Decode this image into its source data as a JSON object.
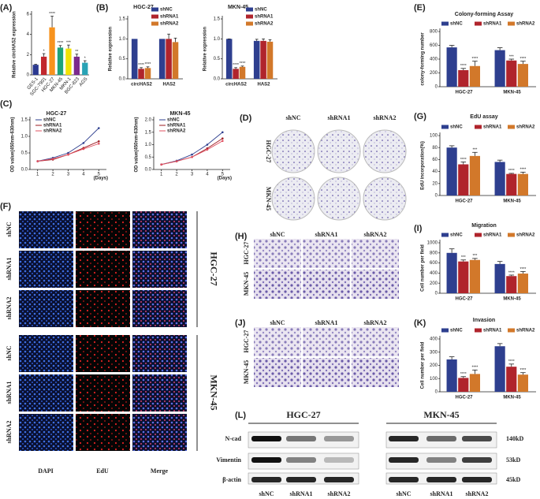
{
  "panel_labels": [
    "(A)",
    "(B)",
    "(E)",
    "(C)",
    "(D)",
    "(G)",
    "(F)",
    "(H)",
    "(I)",
    "(J)",
    "(K)",
    "(L)"
  ],
  "chart_data": [
    {
      "type": "bar",
      "ylabel": "Relative circHAS2 expression",
      "categories": [
        "GES-1",
        "SGC-7901",
        "HGC-27",
        "MKN-45",
        "MKN-1",
        "BGC-823",
        "AGS"
      ],
      "values": [
        1,
        1.8,
        4.7,
        2.7,
        2.6,
        1.8,
        1.2
      ],
      "errors": [
        0.05,
        0.3,
        1.1,
        0.2,
        0.35,
        0.25,
        0.2
      ],
      "colors": [
        "#2b3990",
        "#c1272d",
        "#f7931e",
        "#1fa37a",
        "#f2e205",
        "#7b2a8c",
        "#29a3b5"
      ],
      "annotations": [
        null,
        "*",
        "****",
        "****",
        "***",
        "**",
        "*"
      ],
      "ylim": [
        0,
        6
      ],
      "yticks": [
        0,
        2,
        4,
        6
      ]
    },
    {
      "type": "bar",
      "title": "HGC-27",
      "ylabel": "Relative expression",
      "categories": [
        "circHAS2",
        "HAS2"
      ],
      "series": [
        {
          "name": "shNC",
          "color": "#2e3f8f",
          "values": [
            1,
            1
          ]
        },
        {
          "name": "shRNA1",
          "color": "#b0242c",
          "values": [
            0.25,
            1.0
          ],
          "errors": [
            0.03,
            0.12
          ],
          "annotations": [
            "****",
            null
          ]
        },
        {
          "name": "shRNA2",
          "color": "#d2782a",
          "values": [
            0.27,
            0.92
          ],
          "errors": [
            0.03,
            0.1
          ],
          "annotations": [
            "****",
            null
          ]
        }
      ],
      "ylim": [
        0,
        1.5
      ],
      "yticks": [
        {
          "value": 0,
          "label": "0.0"
        },
        {
          "value": 0.5,
          "label": "0.5"
        },
        {
          "value": 1,
          "label": "1.0"
        },
        {
          "value": 1.5,
          "label": "1.5"
        }
      ]
    },
    {
      "type": "bar",
      "title": "MKN-45",
      "ylabel": "Relative expression",
      "categories": [
        "circHAS2",
        "HAS2"
      ],
      "series": [
        {
          "name": "shNC",
          "color": "#2e3f8f",
          "values": [
            1,
            0.95
          ],
          "errors": [
            0,
            0.04
          ]
        },
        {
          "name": "shRNA1",
          "color": "#b0242c",
          "values": [
            0.25,
            0.95
          ],
          "errors": [
            0.03,
            0.05
          ],
          "annotations": [
            "****",
            null
          ]
        },
        {
          "name": "shRNA2",
          "color": "#d2782a",
          "values": [
            0.3,
            0.93
          ],
          "errors": [
            0.02,
            0.05
          ],
          "annotations": [
            "****",
            null
          ]
        }
      ],
      "ylim": [
        0,
        1.5
      ],
      "yticks": [
        {
          "value": 0,
          "label": "0.0"
        },
        {
          "value": 0.5,
          "label": "0.5"
        },
        {
          "value": 1,
          "label": "1.0"
        },
        {
          "value": 1.5,
          "label": "1.5"
        }
      ]
    },
    {
      "type": "bar",
      "title": "Colony-forming Assay",
      "ylabel": "colony-forming number",
      "categories": [
        "HGC-27",
        "MKN-45"
      ],
      "series": [
        {
          "name": "shNC",
          "color": "#2e3f8f",
          "values": [
            570,
            530
          ],
          "errors": [
            30,
            35
          ]
        },
        {
          "name": "shRNA1",
          "color": "#b0242c",
          "values": [
            240,
            380
          ],
          "errors": [
            25,
            20
          ],
          "annotations": [
            "****",
            "***"
          ]
        },
        {
          "name": "shRNA2",
          "color": "#d2782a",
          "values": [
            300,
            330
          ],
          "errors": [
            70,
            40
          ],
          "annotations": [
            "****",
            "****"
          ]
        }
      ],
      "ylim": [
        0,
        800
      ],
      "yticks": [
        0,
        200,
        400,
        600,
        800
      ]
    },
    {
      "type": "line",
      "title": "HGC-27",
      "ylabel": "OD value(450nm-630nm)",
      "xlabel": "(Days)",
      "x": [
        1,
        2,
        3,
        4,
        5
      ],
      "xlim": [
        0.5,
        5.5
      ],
      "xticks": [
        1,
        2,
        3,
        4,
        5
      ],
      "series": [
        {
          "name": "shNC",
          "color": "#2e3f8f",
          "values": [
            0.25,
            0.35,
            0.5,
            0.8,
            1.25
          ]
        },
        {
          "name": "shRNA1",
          "color": "#9e1b22",
          "values": [
            0.25,
            0.3,
            0.45,
            0.65,
            0.85
          ]
        },
        {
          "name": "shRNA2",
          "color": "#e05060",
          "values": [
            0.25,
            0.32,
            0.45,
            0.62,
            0.78
          ]
        }
      ],
      "ylim": [
        0,
        1.5
      ],
      "yticks": [
        {
          "value": 0,
          "label": "0.0"
        },
        {
          "value": 0.5,
          "label": "0.5"
        },
        {
          "value": 1,
          "label": "1.0"
        },
        {
          "value": 1.5,
          "label": "1.5"
        }
      ]
    },
    {
      "type": "line",
      "title": "MKN-45",
      "ylabel": "OD value(450nm-630nm)",
      "xlabel": "(Days)",
      "x": [
        1,
        2,
        3,
        4,
        5
      ],
      "xlim": [
        0.5,
        5.5
      ],
      "xticks": [
        1,
        2,
        3,
        4,
        5
      ],
      "series": [
        {
          "name": "shNC",
          "color": "#2e3f8f",
          "values": [
            0.2,
            0.35,
            0.6,
            1.0,
            1.5
          ]
        },
        {
          "name": "shRNA1",
          "color": "#9e1b22",
          "values": [
            0.2,
            0.33,
            0.5,
            0.85,
            1.25
          ]
        },
        {
          "name": "shRNA2",
          "color": "#e05060",
          "values": [
            0.2,
            0.33,
            0.5,
            0.8,
            1.15
          ]
        }
      ],
      "ylim": [
        0,
        2
      ],
      "yticks": [
        {
          "value": 0,
          "label": "0.0"
        },
        {
          "value": 0.5,
          "label": "0.5"
        },
        {
          "value": 1,
          "label": "1.0"
        },
        {
          "value": 1.5,
          "label": "1.5"
        },
        {
          "value": 2,
          "label": "2.0"
        }
      ]
    },
    {
      "type": "bar",
      "title": "EdU assay",
      "ylabel": "EdU incorporation(%)",
      "categories": [
        "HGC-27",
        "MKN-45"
      ],
      "series": [
        {
          "name": "shNC",
          "color": "#2e3f8f",
          "values": [
            80,
            56
          ],
          "errors": [
            3,
            3
          ]
        },
        {
          "name": "shRNA1",
          "color": "#b0242c",
          "values": [
            52,
            36
          ],
          "errors": [
            4,
            1
          ],
          "annotations": [
            "****",
            "****"
          ]
        },
        {
          "name": "shRNA2",
          "color": "#d2782a",
          "values": [
            66,
            36
          ],
          "errors": [
            6,
            3
          ],
          "annotations": [
            "***",
            "****"
          ]
        }
      ],
      "ylim": [
        0,
        100
      ],
      "yticks": [
        0,
        20,
        40,
        60,
        80,
        100
      ]
    },
    {
      "type": "bar",
      "title": "Migration",
      "ylabel": "Cell number per field",
      "categories": [
        "HGC-27",
        "MKN-45"
      ],
      "series": [
        {
          "name": "shNC",
          "color": "#2e3f8f",
          "values": [
            800,
            580
          ],
          "errors": [
            80,
            50
          ]
        },
        {
          "name": "shRNA1",
          "color": "#b0242c",
          "values": [
            630,
            340
          ],
          "errors": [
            30,
            20
          ],
          "annotations": [
            "***",
            "****"
          ]
        },
        {
          "name": "shRNA2",
          "color": "#d2782a",
          "values": [
            660,
            390
          ],
          "errors": [
            30,
            40
          ],
          "annotations": [
            "***",
            "****"
          ]
        }
      ],
      "ylim": [
        0,
        1000
      ],
      "yticks": [
        0,
        200,
        400,
        600,
        800,
        1000
      ]
    },
    {
      "type": "bar",
      "title": "Invasion",
      "ylabel": "Cell number per field",
      "categories": [
        "HGC-27",
        "MKN-45"
      ],
      "series": [
        {
          "name": "shNC",
          "color": "#2e3f8f",
          "values": [
            245,
            345
          ],
          "errors": [
            20,
            20
          ]
        },
        {
          "name": "shRNA1",
          "color": "#b0242c",
          "values": [
            105,
            190
          ],
          "errors": [
            10,
            20
          ],
          "annotations": [
            "****",
            "****"
          ]
        },
        {
          "name": "shRNA2",
          "color": "#d2782a",
          "values": [
            135,
            130
          ],
          "errors": [
            30,
            15
          ],
          "annotations": [
            "****",
            "****"
          ]
        }
      ],
      "ylim": [
        0,
        400
      ],
      "yticks": [
        0,
        100,
        200,
        300,
        400
      ]
    }
  ],
  "images": {
    "D": {
      "rows": [
        "HGC-27",
        "MKN-45"
      ],
      "cols": [
        "shNC",
        "shRNA1",
        "shRNA2"
      ]
    },
    "F": {
      "groups": [
        "HGC-27",
        "MKN-45"
      ],
      "rows": [
        "shNC",
        "shRNA1",
        "shRNA2"
      ],
      "cols": [
        "DAPI",
        "EdU",
        "Merge"
      ]
    },
    "H": {
      "rows": [
        "HGC-27",
        "MKN-45"
      ],
      "cols": [
        "shNC",
        "shRNA1",
        "shRNA2"
      ]
    },
    "J": {
      "rows": [
        "HGC-27",
        "MKN-45"
      ],
      "cols": [
        "shNC",
        "shRNA1",
        "shRNA2"
      ]
    },
    "L": {
      "groups": [
        "HGC-27",
        "MKN-45"
      ],
      "rows": [
        "N-cad",
        "Vimentin",
        "β-actin"
      ],
      "sizes": [
        "140kD",
        "53kD",
        "45kD"
      ],
      "lanes": [
        "shNC",
        "shRNA1",
        "shRNA2"
      ]
    }
  }
}
